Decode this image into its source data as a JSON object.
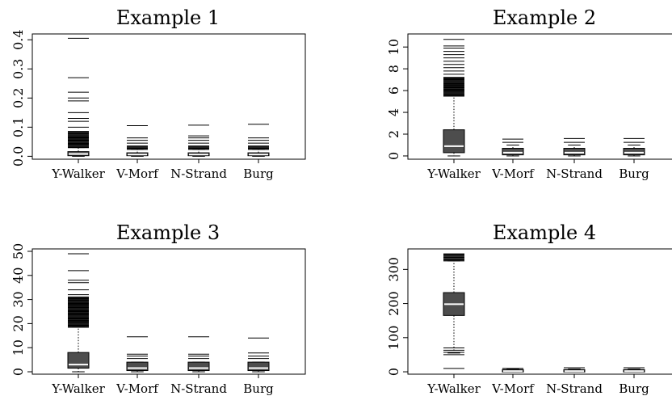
{
  "chart_data": [
    {
      "type": "box",
      "title": "Example 1",
      "categories": [
        "Y-Walker",
        "V-Morf",
        "N-Strand",
        "Burg"
      ],
      "ylim": [
        -0.01,
        0.42
      ],
      "yticks": [
        0.0,
        0.1,
        0.2,
        0.3,
        0.4
      ],
      "ytick_labels": [
        "0.0",
        "0.1",
        "0.2",
        "0.3",
        "0.4"
      ],
      "boxes": [
        {
          "q1": 0.002,
          "median": 0.008,
          "q3": 0.016,
          "whisker_low": 0.0,
          "whisker_high": 0.03,
          "outlier_range": [
            0.03,
            0.085
          ],
          "outliers_extra": [
            0.1,
            0.12,
            0.13,
            0.15,
            0.19,
            0.2,
            0.22,
            0.27,
            0.405
          ]
        },
        {
          "q1": 0.002,
          "median": 0.006,
          "q3": 0.012,
          "whisker_low": 0.0,
          "whisker_high": 0.024,
          "outlier_range": [
            0.024,
            0.035
          ],
          "outliers_extra": [
            0.045,
            0.055,
            0.063,
            0.105
          ]
        },
        {
          "q1": 0.002,
          "median": 0.006,
          "q3": 0.012,
          "whisker_low": 0.0,
          "whisker_high": 0.024,
          "outlier_range": [
            0.024,
            0.035
          ],
          "outliers_extra": [
            0.045,
            0.055,
            0.063,
            0.07,
            0.107
          ]
        },
        {
          "q1": 0.002,
          "median": 0.006,
          "q3": 0.012,
          "whisker_low": 0.0,
          "whisker_high": 0.024,
          "outlier_range": [
            0.024,
            0.035
          ],
          "outliers_extra": [
            0.045,
            0.055,
            0.063,
            0.11
          ]
        }
      ]
    },
    {
      "type": "box",
      "title": "Example 2",
      "categories": [
        "Y-Walker",
        "V-Morf",
        "N-Strand",
        "Burg"
      ],
      "ylim": [
        -0.3,
        11.2
      ],
      "yticks": [
        0,
        2,
        4,
        6,
        8,
        10
      ],
      "ytick_labels": [
        "0",
        "2",
        "4",
        "6",
        "8",
        "10"
      ],
      "boxes": [
        {
          "q1": 0.3,
          "median": 0.9,
          "q3": 2.4,
          "whisker_low": 0.0,
          "whisker_high": 5.5,
          "outlier_range": [
            5.5,
            7.2
          ],
          "outliers_extra": [
            7.5,
            7.8,
            8.1,
            8.4,
            8.7,
            9.0,
            9.3,
            9.6,
            9.9,
            10.1,
            10.7
          ]
        },
        {
          "q1": 0.1,
          "median": 0.3,
          "q3": 0.7,
          "whisker_low": 0.0,
          "whisker_high": 1.0,
          "outlier_range": [
            1.0,
            1.0
          ],
          "outliers_extra": [
            1.25,
            1.55
          ]
        },
        {
          "q1": 0.1,
          "median": 0.3,
          "q3": 0.7,
          "whisker_low": 0.0,
          "whisker_high": 1.0,
          "outlier_range": [
            1.0,
            1.0
          ],
          "outliers_extra": [
            1.25,
            1.6
          ]
        },
        {
          "q1": 0.1,
          "median": 0.3,
          "q3": 0.7,
          "whisker_low": 0.0,
          "whisker_high": 1.0,
          "outlier_range": [
            1.0,
            1.0
          ],
          "outliers_extra": [
            1.25,
            1.6
          ]
        }
      ]
    },
    {
      "type": "box",
      "title": "Example 3",
      "categories": [
        "Y-Walker",
        "V-Morf",
        "N-Strand",
        "Burg"
      ],
      "ylim": [
        -1,
        51
      ],
      "yticks": [
        0,
        10,
        20,
        30,
        40,
        50
      ],
      "ytick_labels": [
        "0",
        "10",
        "20",
        "30",
        "40",
        "50"
      ],
      "boxes": [
        {
          "q1": 1.5,
          "median": 3.0,
          "q3": 8.0,
          "whisker_low": 0.0,
          "whisker_high": 18.5,
          "outlier_range": [
            18.5,
            31.0
          ],
          "outliers_extra": [
            32,
            34,
            37,
            38,
            42,
            49
          ]
        },
        {
          "q1": 0.5,
          "median": 1.5,
          "q3": 4.0,
          "whisker_low": 0.0,
          "whisker_high": 4.0,
          "outlier_range": [
            4.0,
            4.0
          ],
          "outliers_extra": [
            5.5,
            6.5,
            7.3,
            14.5
          ]
        },
        {
          "q1": 0.5,
          "median": 1.5,
          "q3": 4.0,
          "whisker_low": 0.0,
          "whisker_high": 4.0,
          "outlier_range": [
            4.0,
            4.0
          ],
          "outliers_extra": [
            5.5,
            6.5,
            7.3,
            14.5
          ]
        },
        {
          "q1": 0.5,
          "median": 1.5,
          "q3": 4.0,
          "whisker_low": 0.0,
          "whisker_high": 4.0,
          "outlier_range": [
            4.0,
            4.0
          ],
          "outliers_extra": [
            5.5,
            6.5,
            7.8,
            14.0
          ]
        }
      ]
    },
    {
      "type": "box",
      "title": "Example 4",
      "categories": [
        "Y-Walker",
        "V-Morf",
        "N-Strand",
        "Burg"
      ],
      "ylim": [
        -7,
        360
      ],
      "yticks": [
        0,
        100,
        200,
        300
      ],
      "ytick_labels": [
        "0",
        "100",
        "200",
        "300"
      ],
      "boxes": [
        {
          "q1": 165,
          "median": 198,
          "q3": 232,
          "whisker_low": 55,
          "whisker_high": 325,
          "outlier_range": [
            325,
            345
          ],
          "outliers_extra": [
            10,
            50,
            57,
            63,
            70
          ]
        },
        {
          "q1": 0,
          "median": 2,
          "q3": 6,
          "whisker_low": 0,
          "whisker_high": 8,
          "outlier_range": [
            8,
            8
          ],
          "outliers_extra": [
            10
          ]
        },
        {
          "q1": 0,
          "median": 2,
          "q3": 6,
          "whisker_low": 0,
          "whisker_high": 8,
          "outlier_range": [
            8,
            8
          ],
          "outliers_extra": [
            12
          ]
        },
        {
          "q1": 0,
          "median": 2,
          "q3": 6,
          "whisker_low": 0,
          "whisker_high": 8,
          "outlier_range": [
            8,
            8
          ],
          "outliers_extra": [
            12
          ]
        }
      ]
    }
  ]
}
